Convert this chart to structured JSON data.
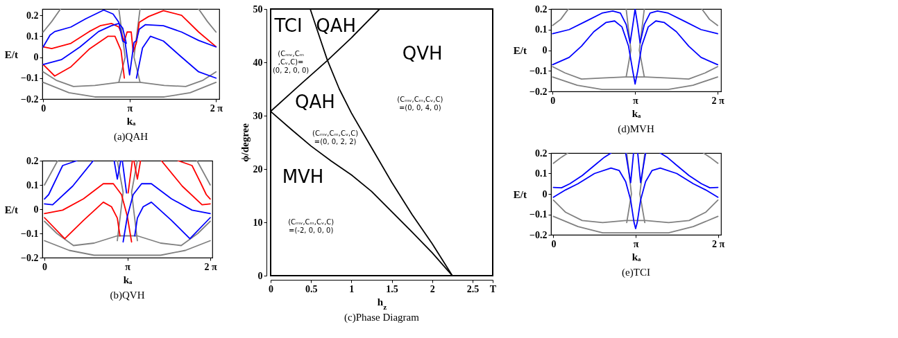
{
  "chart_data": [
    {
      "type": "line",
      "title": "(a)QAH",
      "xlabel": "kₐ",
      "ylabel": "E/t",
      "xlim": [
        -0.03,
        6.4
      ],
      "ylim": [
        -0.2,
        0.23
      ],
      "xticks": [
        {
          "value": 0,
          "label": "0"
        },
        {
          "value": 3.1416,
          "label": "π"
        },
        {
          "value": 6.2832,
          "label": "2 π"
        }
      ],
      "yticks": [
        -0.2,
        -0.1,
        0,
        0.1,
        0.2
      ],
      "series": [
        {
          "color": "#808080",
          "x": [
            0,
            0.47,
            1.1,
            1.88,
            2.76,
            3.52,
            4.4,
            5.18,
            5.81,
            6.28
          ],
          "values": [
            -0.07,
            -0.11,
            -0.14,
            -0.135,
            -0.12,
            -0.12,
            -0.135,
            -0.14,
            -0.11,
            -0.07
          ]
        },
        {
          "color": "#808080",
          "x": [
            0,
            0.94,
            1.88,
            4.4,
            5.34,
            6.28
          ],
          "values": [
            -0.12,
            -0.17,
            -0.19,
            -0.19,
            -0.17,
            -0.12
          ]
        },
        {
          "color": "#808080",
          "x": [
            0,
            0.31,
            0.63
          ],
          "values": [
            0.12,
            0.17,
            0.23
          ]
        },
        {
          "color": "#808080",
          "x": [
            5.65,
            5.97,
            6.28
          ],
          "values": [
            0.23,
            0.17,
            0.12
          ]
        },
        {
          "color": "#808080",
          "x": [
            2.75,
            2.98,
            2.75
          ],
          "values": [
            0.23,
            0,
            -0.12
          ]
        },
        {
          "color": "#808080",
          "x": [
            3.52,
            3.3,
            3.52
          ],
          "values": [
            0.23,
            0,
            -0.12
          ]
        },
        {
          "color": "#ff0000",
          "x": [
            0,
            0.31,
            1.01,
            1.67,
            2.07,
            2.48,
            2.75,
            2.95,
            3.05,
            3.2,
            3.27,
            3.39,
            3.49,
            3.83,
            4.37,
            5.03,
            5.65,
            6.28
          ],
          "values": [
            0.049,
            0.041,
            0.066,
            0.122,
            0.15,
            0.161,
            0.144,
            0.077,
            0.12,
            0.12,
            0.025,
            0.07,
            0.166,
            0.194,
            0.222,
            0.2,
            0.12,
            0.05
          ]
        },
        {
          "color": "#ff0000",
          "x": [
            0,
            0.42,
            1.01,
            1.67,
            2.36,
            2.61,
            2.83,
            2.95
          ],
          "values": [
            -0.035,
            -0.09,
            -0.046,
            0.038,
            0.1,
            0.1,
            0.032,
            -0.1
          ]
        },
        {
          "color": "#0000ff",
          "x": [
            0,
            0.25,
            0.42,
            1.01,
            1.54,
            2.2,
            2.54,
            2.75,
            2.89,
            2.98,
            3.14,
            3.3,
            3.39,
            3.49,
            3.71,
            4.37,
            5.03,
            5.65,
            6.28
          ],
          "values": [
            0.049,
            0.105,
            0.122,
            0.144,
            0.183,
            0.225,
            0.206,
            0.166,
            0.077,
            0.07,
            -0.085,
            0.07,
            0.08,
            0.133,
            0.155,
            0.15,
            0.12,
            0.08,
            0.049
          ]
        },
        {
          "color": "#0000ff",
          "x": [
            0,
            0.66,
            1.34,
            2.01,
            2.48,
            2.75,
            2.89,
            3.02
          ],
          "values": [
            -0.035,
            -0.012,
            0.049,
            0.122,
            0.15,
            0.161,
            0.139,
            0.066
          ]
        },
        {
          "color": "#0000ff",
          "x": [
            3.39,
            3.61,
            3.9,
            4.37,
            5.03,
            5.65,
            6.28
          ],
          "values": [
            -0.1,
            0.044,
            0.1,
            0.077,
            0.0,
            -0.07,
            -0.1
          ]
        }
      ]
    },
    {
      "type": "line",
      "title": "(b)QVH",
      "xlabel": "kₐ",
      "ylabel": "E/t",
      "xlim": [
        -0.08,
        6.36
      ],
      "ylim": [
        -0.2,
        0.2
      ],
      "xticks": [
        {
          "value": 0,
          "label": "0"
        },
        {
          "value": 3.1416,
          "label": "π"
        },
        {
          "value": 6.2832,
          "label": "2 π"
        }
      ],
      "yticks": [
        -0.2,
        -0.1,
        0,
        0.1,
        0.2
      ],
      "series": [
        {
          "color": "#808080",
          "x": [
            0,
            0.47,
            1.1,
            1.88,
            2.76,
            3.52,
            4.4,
            5.18,
            5.81,
            6.28
          ],
          "values": [
            -0.05,
            -0.1,
            -0.15,
            -0.14,
            -0.11,
            -0.11,
            -0.14,
            -0.15,
            -0.1,
            -0.05
          ]
        },
        {
          "color": "#808080",
          "x": [
            0,
            0.94,
            1.88,
            4.4,
            5.34,
            6.28
          ],
          "values": [
            -0.13,
            -0.17,
            -0.19,
            -0.19,
            -0.17,
            -0.13
          ]
        },
        {
          "color": "#808080",
          "x": [
            0,
            0.25,
            0.5
          ],
          "values": [
            0.1,
            0.15,
            0.2
          ]
        },
        {
          "color": "#808080",
          "x": [
            5.78,
            6.03,
            6.28
          ],
          "values": [
            0.2,
            0.15,
            0.1
          ]
        },
        {
          "color": "#808080",
          "x": [
            2.76,
            2.98,
            2.76
          ],
          "values": [
            0.2,
            0.07,
            -0.13
          ]
        },
        {
          "color": "#808080",
          "x": [
            3.52,
            3.3,
            3.52
          ],
          "values": [
            0.2,
            0.07,
            -0.13
          ]
        },
        {
          "color": "#ff0000",
          "x": [
            0,
            0.69,
            1.48,
            2.23,
            2.61,
            2.92,
            3.14,
            3.3
          ],
          "values": [
            -0.018,
            -0.004,
            0.043,
            0.105,
            0.105,
            0.06,
            -0.03,
            -0.135
          ]
        },
        {
          "color": "#0000ff",
          "x": [
            2.98,
            3.14,
            3.36,
            3.68,
            4.05,
            4.81,
            5.59,
            6.28
          ],
          "values": [
            -0.135,
            -0.03,
            0.06,
            0.105,
            0.105,
            0.043,
            -0.004,
            -0.018
          ]
        },
        {
          "color": "#ff0000",
          "x": [
            0,
            0.77,
            1.48,
            2.23,
            2.54,
            2.76,
            2.86
          ],
          "values": [
            -0.035,
            -0.122,
            -0.046,
            0.029,
            0.01,
            -0.037,
            -0.11
          ]
        },
        {
          "color": "#0000ff",
          "x": [
            3.42,
            3.52,
            3.74,
            4.05,
            4.81,
            5.51,
            6.28
          ],
          "values": [
            -0.11,
            -0.037,
            0.01,
            0.029,
            -0.046,
            -0.122,
            -0.035
          ]
        },
        {
          "color": "#0000ff",
          "x": [
            0,
            0.16,
            0.38,
            0.69,
            1.23
          ],
          "values": [
            0.042,
            0.06,
            0.11,
            0.18,
            0.2
          ]
        },
        {
          "color": "#ff0000",
          "x": [
            5.06,
            5.59,
            5.91,
            6.13,
            6.28
          ],
          "values": [
            0.2,
            0.18,
            0.11,
            0.06,
            0.042
          ]
        },
        {
          "color": "#0000ff",
          "x": [
            0,
            0.31,
            1.07,
            1.85
          ],
          "values": [
            0.022,
            0.018,
            0.095,
            0.2
          ]
        },
        {
          "color": "#ff0000",
          "x": [
            4.43,
            5.22,
            5.97,
            6.28
          ],
          "values": [
            0.2,
            0.095,
            0.018,
            0.022
          ]
        },
        {
          "color": "#0000ff",
          "x": [
            2.64,
            2.76,
            2.89
          ],
          "values": [
            0.2,
            0.124,
            0.2
          ]
        },
        {
          "color": "#ff0000",
          "x": [
            3.39,
            3.52,
            3.64
          ],
          "values": [
            0.2,
            0.124,
            0.2
          ]
        },
        {
          "color": "#0000ff",
          "x": [
            2.95,
            3.11
          ],
          "values": [
            0.2,
            0.067
          ]
        },
        {
          "color": "#ff0000",
          "x": [
            3.17,
            3.33
          ],
          "values": [
            0.067,
            0.2
          ]
        }
      ]
    },
    {
      "type": "line",
      "title": "(c)Phase Diagram",
      "xlabel": "h$_{z}$",
      "ylabel": "ϕ/degree",
      "xlim": [
        0,
        2.75
      ],
      "ylim": [
        0,
        50
      ],
      "xticks": [
        0,
        0.5,
        1,
        1.5,
        2,
        2.5,
        {
          "value": 2.75,
          "label": "T"
        }
      ],
      "yticks": [
        0,
        10,
        20,
        30,
        40,
        50
      ],
      "series": [
        {
          "color": "#000000",
          "x": [
            0,
            0.25,
            0.5,
            0.75,
            1,
            1.25,
            1.5,
            1.75,
            2,
            2.25
          ],
          "values": [
            30.8,
            27.5,
            24.3,
            21.5,
            18.9,
            15.8,
            12,
            8.2,
            4.3,
            0
          ]
        },
        {
          "color": "#000000",
          "x": [
            0,
            0.35,
            0.7,
            1.0,
            1.35
          ],
          "values": [
            30.8,
            35.6,
            40.3,
            44.6,
            50
          ]
        },
        {
          "color": "#000000",
          "x": [
            0.49,
            0.6,
            0.7,
            0.85,
            1.0,
            1.25,
            1.5,
            1.75,
            2.0,
            2.25
          ],
          "values": [
            50,
            45,
            40.5,
            35,
            30.5,
            24,
            17.5,
            11.5,
            6,
            0
          ]
        }
      ],
      "annotations": [
        "TCI",
        "(Cₘᵥ,Cₘ\n,Cᵥ,C)=\n(0, 2, 0, 0)",
        "QAH",
        "QVH",
        "(Cₘᵥ,Cₘ,Cᵥ,C)\n=(0, 0, 4, 0)",
        "QAH",
        "(Cₘᵥ,Cₘ,Cᵥ,C)\n=(0, 0, 2, 2)",
        "MVH",
        "(Cₘᵥ,Cₘ,Cᵥ,C)\n=(-2, 0, 0, 0)"
      ]
    },
    {
      "type": "line",
      "title": "(d)MVH",
      "xlabel": "kₐ",
      "ylabel": "E/t",
      "xlim": [
        -0.06,
        6.41
      ],
      "ylim": [
        -0.2,
        0.2
      ],
      "xticks": [
        {
          "value": 0,
          "label": "0"
        },
        {
          "value": 3.1416,
          "label": "π"
        },
        {
          "value": 6.2832,
          "label": "2 π"
        }
      ],
      "yticks": [
        -0.2,
        -0.1,
        0,
        0.1,
        0.2
      ],
      "series": [
        {
          "color": "#808080",
          "x": [
            0,
            0.47,
            1.1,
            1.88,
            2.76,
            3.52,
            4.4,
            5.18,
            5.81,
            6.28
          ],
          "values": [
            -0.08,
            -0.11,
            -0.14,
            -0.135,
            -0.13,
            -0.13,
            -0.135,
            -0.14,
            -0.11,
            -0.08
          ]
        },
        {
          "color": "#808080",
          "x": [
            0,
            0.94,
            1.88,
            4.4,
            5.34,
            6.28
          ],
          "values": [
            -0.13,
            -0.17,
            -0.19,
            -0.19,
            -0.17,
            -0.13
          ]
        },
        {
          "color": "#808080",
          "x": [
            0,
            0.31,
            0.6
          ],
          "values": [
            0.12,
            0.15,
            0.2
          ]
        },
        {
          "color": "#808080",
          "x": [
            5.68,
            5.97,
            6.28
          ],
          "values": [
            0.2,
            0.15,
            0.12
          ]
        },
        {
          "color": "#808080",
          "x": [
            2.8,
            2.98,
            2.8
          ],
          "values": [
            0.2,
            0,
            -0.13
          ]
        },
        {
          "color": "#808080",
          "x": [
            3.49,
            3.3,
            3.49
          ],
          "values": [
            0.2,
            0,
            -0.13
          ]
        },
        {
          "color": "#0000ff",
          "x": [
            0,
            0.63,
            1.26,
            1.88,
            2.29,
            2.58,
            2.8,
            2.95,
            3.05,
            3.14,
            3.24,
            3.33,
            3.49,
            3.71,
            3.99,
            4.4,
            5.03,
            5.65,
            6.28
          ],
          "values": [
            0.08,
            0.1,
            0.14,
            0.18,
            0.19,
            0.18,
            0.125,
            0.035,
            0.12,
            0.2,
            0.12,
            0.035,
            0.125,
            0.18,
            0.19,
            0.18,
            0.14,
            0.1,
            0.08
          ]
        },
        {
          "color": "#0000ff",
          "x": [
            0,
            0.63,
            1.1,
            1.57,
            2.04,
            2.36,
            2.64,
            2.89,
            3.05,
            3.14,
            3.24,
            3.39,
            3.64,
            3.93,
            4.24,
            4.71,
            5.18,
            5.65,
            6.28
          ],
          "values": [
            -0.07,
            -0.035,
            0.02,
            0.09,
            0.135,
            0.142,
            0.113,
            0.02,
            -0.1,
            -0.164,
            -0.1,
            0.02,
            0.113,
            0.142,
            0.135,
            0.09,
            0.02,
            -0.035,
            -0.07
          ]
        }
      ]
    },
    {
      "type": "line",
      "title": "(e)TCI",
      "xlabel": "kₐ",
      "ylabel": "E/t",
      "xlim": [
        -0.09,
        6.4
      ],
      "ylim": [
        -0.2,
        0.2
      ],
      "xticks": [
        {
          "value": 0,
          "label": "0"
        },
        {
          "value": 3.1416,
          "label": "π"
        },
        {
          "value": 6.2832,
          "label": "2 π"
        }
      ],
      "yticks": [
        -0.2,
        -0.1,
        0,
        0.1,
        0.2
      ],
      "series": [
        {
          "color": "#808080",
          "x": [
            0,
            0.47,
            1.1,
            1.88,
            2.76,
            3.52,
            4.4,
            5.18,
            5.81,
            6.28
          ],
          "values": [
            -0.03,
            -0.09,
            -0.13,
            -0.14,
            -0.13,
            -0.13,
            -0.14,
            -0.13,
            -0.09,
            -0.03
          ]
        },
        {
          "color": "#808080",
          "x": [
            0,
            0.94,
            1.88,
            4.4,
            5.34,
            6.28
          ],
          "values": [
            -0.11,
            -0.16,
            -0.19,
            -0.19,
            -0.16,
            -0.11
          ]
        },
        {
          "color": "#808080",
          "x": [
            0,
            0.31,
            0.55
          ],
          "values": [
            0.15,
            0.18,
            0.2
          ]
        },
        {
          "color": "#808080",
          "x": [
            5.73,
            5.97,
            6.28
          ],
          "values": [
            0.2,
            0.18,
            0.15
          ]
        },
        {
          "color": "#808080",
          "x": [
            2.8,
            2.98,
            2.8
          ],
          "values": [
            0.2,
            0,
            -0.14
          ]
        },
        {
          "color": "#808080",
          "x": [
            3.49,
            3.3,
            3.49
          ],
          "values": [
            0.2,
            0,
            -0.14
          ]
        },
        {
          "color": "#0000ff",
          "x": [
            0,
            0.31,
            0.63,
            1.1,
            1.57,
            1.95,
            2.2,
            2.51,
            2.76,
            2.95,
            3.06,
            3.14,
            3.22,
            3.33,
            3.52,
            3.77,
            4.08,
            4.34,
            4.71,
            5.18,
            5.65,
            5.97,
            6.28
          ],
          "values": [
            0.032,
            0.03,
            0.05,
            0.09,
            0.14,
            0.18,
            0.2,
            null,
            0.2,
            0.055,
            0.2,
            null,
            0.2,
            0.055,
            0.2,
            null,
            0.2,
            0.18,
            0.14,
            0.09,
            0.05,
            0.03,
            0.032
          ]
        },
        {
          "color": "#0000ff",
          "x": [
            0,
            0.47,
            0.94,
            1.57,
            2.2,
            2.51,
            2.76,
            2.95,
            3.08,
            3.14,
            3.2,
            3.33,
            3.52,
            3.77,
            4.08,
            4.71,
            5.34,
            5.81,
            6.28
          ],
          "values": [
            -0.016,
            0.02,
            0.05,
            0.1,
            0.127,
            0.115,
            0.06,
            -0.03,
            -0.14,
            -0.17,
            -0.14,
            -0.03,
            0.06,
            0.115,
            0.127,
            0.1,
            0.05,
            0.02,
            -0.016
          ]
        }
      ]
    }
  ]
}
